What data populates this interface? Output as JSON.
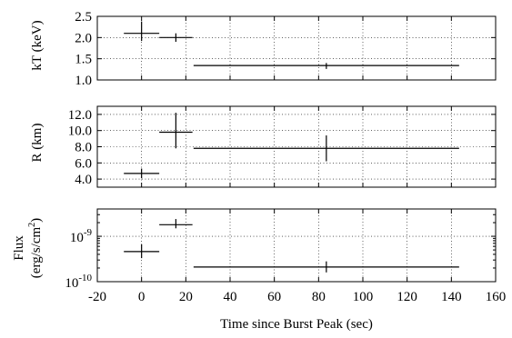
{
  "chart_data": {
    "type": "scatter",
    "shared_x": {
      "label": "Time since Burst Peak (sec)",
      "range": [
        -20,
        160
      ],
      "ticks": [
        -20,
        0,
        20,
        40,
        60,
        80,
        100,
        120,
        140,
        160
      ],
      "tick_labels": [
        "-20",
        "0",
        "20",
        "40",
        "60",
        "80",
        "100",
        "120",
        "140",
        "160"
      ],
      "grid": true
    },
    "panels": [
      {
        "id": "kt",
        "ylabel": "kT (keV)",
        "ylim": [
          1.0,
          2.5
        ],
        "scale": "linear",
        "ticks": [
          1.0,
          1.5,
          2.0,
          2.5
        ],
        "tick_labels": [
          "1.0",
          "1.5",
          "2.0",
          "2.5"
        ],
        "grid": true,
        "points": [
          {
            "x": 0,
            "xerr": [
              8,
              8
            ],
            "y": 2.1,
            "yerr": [
              0.18,
              0.28
            ]
          },
          {
            "x": 15.5,
            "xerr": [
              7.5,
              7.5
            ],
            "y": 2.0,
            "yerr": [
              0.1,
              0.1
            ]
          },
          {
            "x": 83.5,
            "xerr": [
              60,
              60
            ],
            "y": 1.34,
            "yerr": [
              0.08,
              0.06
            ]
          }
        ]
      },
      {
        "id": "radius",
        "ylabel": "R (km)",
        "ylim": [
          3.0,
          13.0
        ],
        "scale": "linear",
        "ticks": [
          4.0,
          6.0,
          8.0,
          10.0,
          12.0
        ],
        "tick_labels": [
          "4.0",
          "6.0",
          "8.0",
          "10.0",
          "12.0"
        ],
        "grid": true,
        "points": [
          {
            "x": 0,
            "xerr": [
              8,
              8
            ],
            "y": 4.7,
            "yerr": [
              0.6,
              0.6
            ]
          },
          {
            "x": 15.5,
            "xerr": [
              7.5,
              7.5
            ],
            "y": 9.8,
            "yerr": [
              2.0,
              2.4
            ]
          },
          {
            "x": 83.5,
            "xerr": [
              60,
              60
            ],
            "y": 7.8,
            "yerr": [
              1.6,
              1.6
            ]
          }
        ]
      },
      {
        "id": "flux",
        "ylabel_line1": "Flux",
        "ylabel_line2_base": "(erg/s/cm",
        "ylabel_line2_sup": "2",
        "ylabel_line2_end": ")",
        "ylim": [
          1e-10,
          4e-09
        ],
        "scale": "log",
        "ticks": [
          1e-10,
          1e-09
        ],
        "tick_label_base": "10",
        "tick_label_exps": [
          "-10",
          "-9"
        ],
        "grid": true,
        "points": [
          {
            "x": 0,
            "xerr": [
              8,
              8
            ],
            "y": 4.6e-10,
            "yerr": [
              1.3e-10,
              2.1e-10
            ]
          },
          {
            "x": 15.5,
            "xerr": [
              7.5,
              7.5
            ],
            "y": 1.8e-09,
            "yerr": [
              3e-10,
              6e-10
            ]
          },
          {
            "x": 83.5,
            "xerr": [
              60,
              60
            ],
            "y": 2.1e-10,
            "yerr": [
              5e-11,
              7e-11
            ]
          }
        ]
      }
    ]
  }
}
